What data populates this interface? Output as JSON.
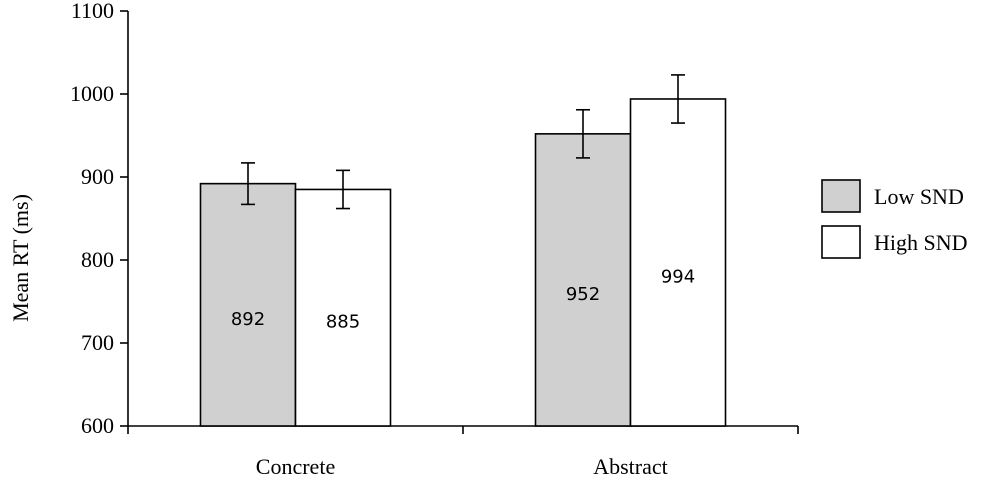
{
  "chart_data": {
    "type": "bar",
    "categories": [
      "Concrete",
      "Abstract"
    ],
    "series": [
      {
        "name": "Low SND",
        "values": [
          892,
          952
        ],
        "errors": [
          25,
          29
        ],
        "color": "#d0d0d0"
      },
      {
        "name": "High SND",
        "values": [
          885,
          994
        ],
        "errors": [
          23,
          29
        ],
        "color": "#ffffff"
      }
    ],
    "value_labels": [
      [
        "892",
        "952"
      ],
      [
        "885",
        "994"
      ]
    ],
    "ylabel": "Mean RT (ms)",
    "xlabel": "",
    "ylim": [
      600,
      1100
    ],
    "yticks": [
      600,
      700,
      800,
      900,
      1000,
      1100
    ],
    "grid": false,
    "legend_position": "right"
  }
}
